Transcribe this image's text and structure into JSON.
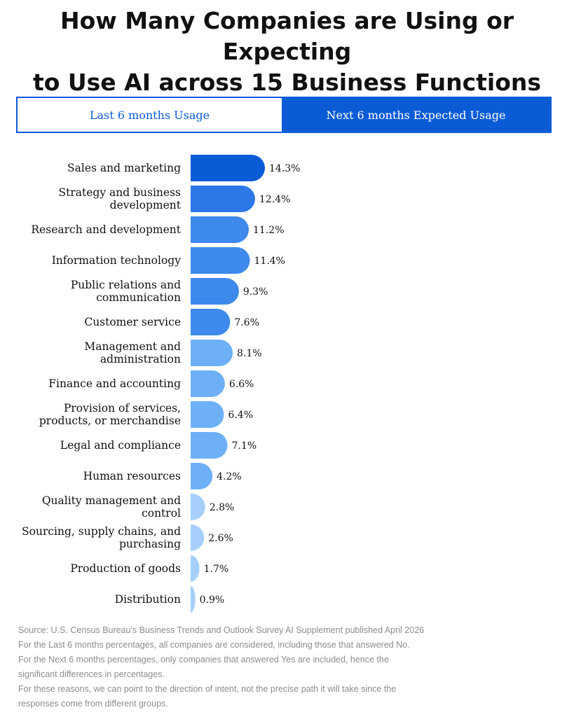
{
  "title_line1": "How Many Companies are Using or Expecting",
  "title_line2": "to Use AI across 15 Business Functions",
  "tabs": [
    {
      "label": "Last 6 months Usage",
      "active": true
    },
    {
      "label": "Next 6 months Expected Usage",
      "active": false
    }
  ],
  "chart_data": {
    "type": "bar",
    "orientation": "horizontal",
    "categories": [
      [
        "Sales and marketing"
      ],
      [
        "Strategy and business",
        "development"
      ],
      [
        "Research and development"
      ],
      [
        "Information technology"
      ],
      [
        "Public relations and",
        "communication"
      ],
      [
        "Customer service"
      ],
      [
        "Management and",
        "administration"
      ],
      [
        "Finance and accounting"
      ],
      [
        "Provision of services,",
        "products, or merchandise"
      ],
      [
        "Legal and compliance"
      ],
      [
        "Human resources"
      ],
      [
        "Quality management and",
        "control"
      ],
      [
        "Sourcing, supply chains, and",
        "purchasing"
      ],
      [
        "Production of goods"
      ],
      [
        "Distribution"
      ]
    ],
    "values": [
      14.3,
      12.4,
      11.2,
      11.4,
      9.3,
      7.6,
      8.1,
      6.6,
      6.4,
      7.1,
      4.2,
      2.8,
      2.6,
      1.7,
      0.9
    ],
    "value_labels": [
      "14.3%",
      "12.4%",
      "11.2%",
      "11.4%",
      "9.3%",
      "7.6%",
      "8.1%",
      "6.6%",
      "6.4%",
      "7.1%",
      "4.2%",
      "2.8%",
      "2.6%",
      "1.7%",
      "0.9%"
    ],
    "unit": "%",
    "colors": [
      "#0b5bd7",
      "#2b78e6",
      "#3d89ec",
      "#3d89ec",
      "#3d89ec",
      "#3d89ec",
      "#6db0f8",
      "#6db0f8",
      "#6db0f8",
      "#6db0f8",
      "#6db0f8",
      "#a6d0fb",
      "#a6d0fb",
      "#a6d0fb",
      "#a6d0fb"
    ],
    "xlim": [
      0,
      14.3
    ],
    "grid": false,
    "legend": "none"
  },
  "source_lines": [
    "Source: U.S. Census Bureau's Business Trends and Outlook Survey AI Supplement published April 2026",
    "For the Last 6 months percentages, all companies are considered, including those that answered No.",
    "For the Next 6 months percentages, only companies that answered Yes are included, hence the",
    "significant differences in percentages.",
    "For these reasons, we can point to the direction of intent, not the precise path it will take since the",
    "responses come from different groups."
  ]
}
